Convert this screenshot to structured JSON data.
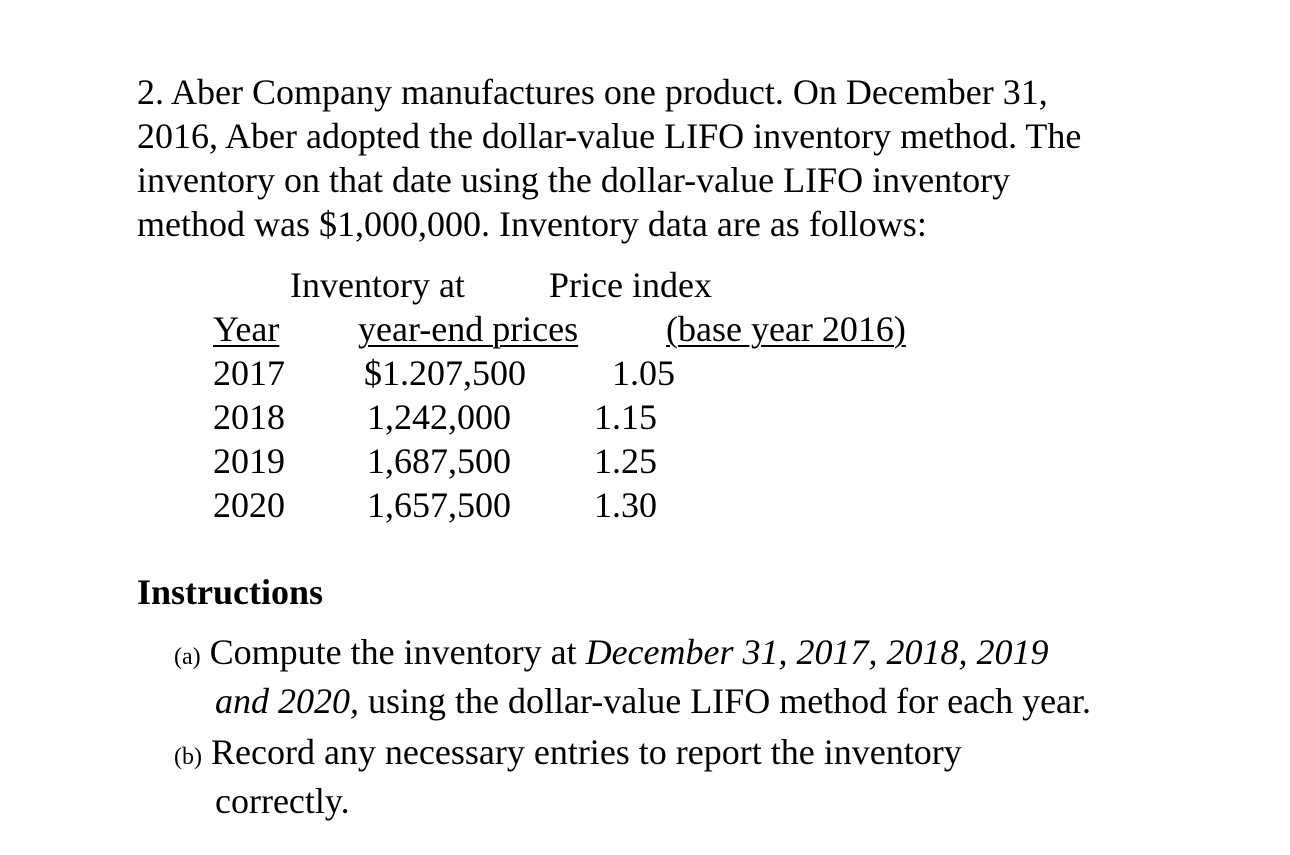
{
  "problem": {
    "lines": [
      "2.  Aber Company manufactures one product. On December 31,",
      "2016, Aber adopted the dollar-value LIFO inventory method. The",
      "inventory on that date using the dollar-value LIFO inventory",
      "method was $1,000,000.  Inventory data are as follows:"
    ]
  },
  "table": {
    "header_top": {
      "inventory": "Inventory at",
      "price": "Price index"
    },
    "header_bottom": {
      "year": "Year",
      "inventory": "year-end prices",
      "price": "(base year 2016)"
    },
    "rows": [
      {
        "year": "2017",
        "inventory": "$1.207,500",
        "index": "1.05"
      },
      {
        "year": "2018",
        "inventory": "1,242,000",
        "index": "1.15"
      },
      {
        "year": "2019",
        "inventory": "1,687,500",
        "index": "1.25"
      },
      {
        "year": "2020",
        "inventory": "1,657,500",
        "index": "1.30"
      }
    ]
  },
  "instructions": {
    "title": "Instructions",
    "a": {
      "marker": "(a)",
      "text1": "Compute the inventory at ",
      "italic1": "December 31, 2017, 2018, 2019",
      "italic2": "and 2020,",
      "text2": " using the dollar-value LIFO method for each year."
    },
    "b": {
      "marker": "(b)",
      "line1": "Record any necessary entries to report the inventory",
      "line2": "correctly."
    }
  }
}
